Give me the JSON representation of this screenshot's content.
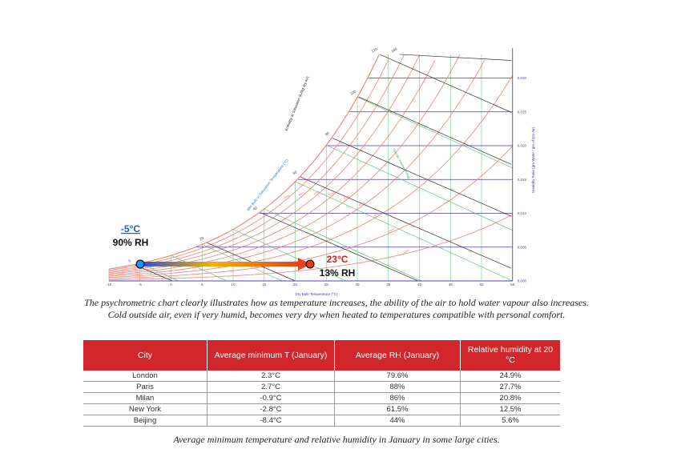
{
  "chart": {
    "x_ticks": [
      "-10",
      "-5",
      "0",
      "5",
      "10",
      "15",
      "20",
      "25",
      "30",
      "35",
      "40",
      "45",
      "50",
      "55"
    ],
    "y_ticks": [
      "0.000",
      "0.005",
      "0.010",
      "0.015",
      "0.020",
      "0.025",
      "0.030"
    ],
    "x_axis_label": "Dry Bulb Temperature (°C)",
    "y_axis_label": "Humidity Ratio (gm Water / gm of Dry Air)",
    "enthalpy_label": "Enthalpy at Saturation (kJ/kg dry Air)",
    "wetbulb_label": "Wet Bulb or Saturation Temperature (°C)",
    "specific_volume_label": "Specific Volume (m³/kg)",
    "enthalpy_values": [
      "0",
      "20",
      "40",
      "60",
      "80",
      "100",
      "120",
      "140"
    ],
    "rh_values": [
      "10%",
      "20%",
      "30%",
      "40%",
      "50%",
      "60%",
      "70%",
      "80%",
      "90%"
    ],
    "start_point": {
      "temperature": "-5°C",
      "rh": "90% RH",
      "color": "#1e90ff"
    },
    "end_point": {
      "temperature": "23°C",
      "rh": "13% RH",
      "color": "#e53b1d"
    },
    "colors": {
      "rh_curves": "#f08070",
      "grid": "#4a3aa8",
      "wetbulb": "#4db870",
      "enthalpy": "#333333",
      "temperature_label": "#1565c0",
      "end_label": "#d51d1d"
    }
  },
  "caption_top": {
    "line1": "The psychrometric chart clearly illustrates how as temperature increases, the ability of the air to hold water vapour also increases.",
    "line2": "Cold outside air, even if very humid, becomes very dry when heated to temperatures compatible with personal comfort."
  },
  "table": {
    "headers": [
      "City",
      "Average minimum T (January)",
      "Average RH (January)",
      "Relative humidity at 20 °C"
    ],
    "rows": [
      [
        "London",
        "2.3°C",
        "79.6%",
        "24.9%"
      ],
      [
        "Paris",
        "2.7°C",
        "88%",
        "27.7%"
      ],
      [
        "Milan",
        "-0.9°C",
        "86%",
        "20.8%"
      ],
      [
        "New York",
        "-2.8°C",
        "61.5%",
        "12.5%"
      ],
      [
        "Beijing",
        "-8.4°C",
        "44%",
        "5.6%"
      ]
    ]
  },
  "caption_bottom": "Average minimum temperature and relative humidity in January in some large cities."
}
